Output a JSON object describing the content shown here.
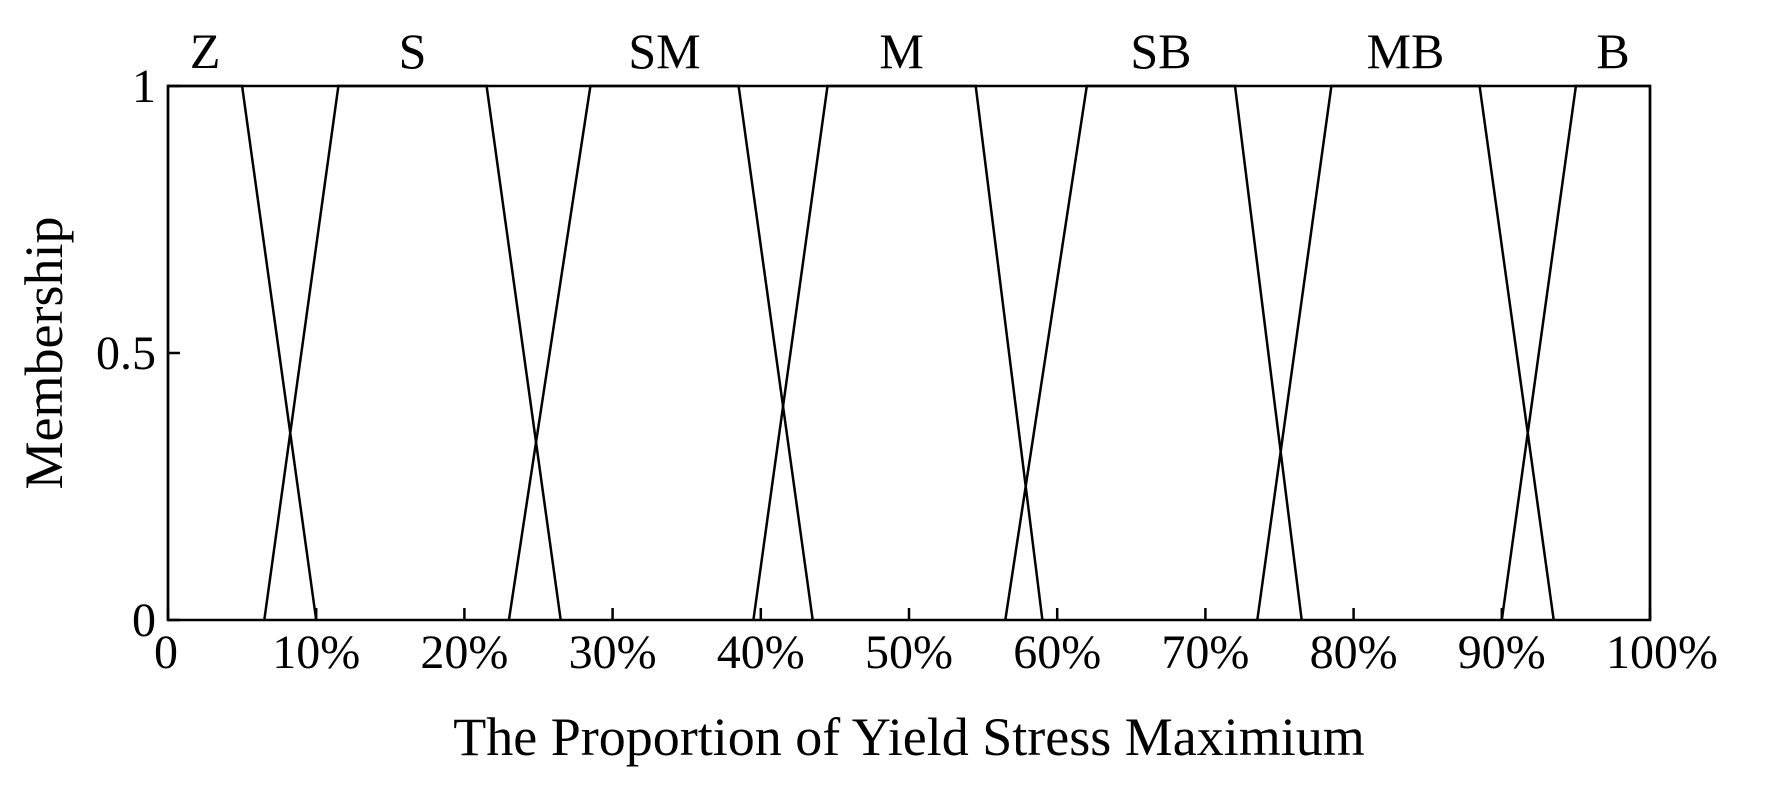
{
  "chart_data": {
    "type": "line",
    "xlabel": "The Proportion of Yield Stress Maximium",
    "ylabel": "Membership",
    "xlim": [
      0,
      100
    ],
    "ylim": [
      0,
      1
    ],
    "x_ticks": [
      {
        "value": 0,
        "label": "0"
      },
      {
        "value": 10,
        "label": "10%"
      },
      {
        "value": 20,
        "label": "20%"
      },
      {
        "value": 30,
        "label": "30%"
      },
      {
        "value": 40,
        "label": "40%"
      },
      {
        "value": 50,
        "label": "50%"
      },
      {
        "value": 60,
        "label": "60%"
      },
      {
        "value": 70,
        "label": "70%"
      },
      {
        "value": 80,
        "label": "80%"
      },
      {
        "value": 90,
        "label": "90%"
      },
      {
        "value": 100,
        "label": "100%"
      }
    ],
    "y_ticks": [
      {
        "value": 0,
        "label": "0"
      },
      {
        "value": 0.5,
        "label": "0.5"
      },
      {
        "value": 1,
        "label": "1"
      }
    ],
    "grid": false,
    "series": [
      {
        "name": "Z",
        "x": [
          0,
          0,
          5,
          10
        ],
        "y": [
          0,
          1,
          1,
          0
        ]
      },
      {
        "name": "S",
        "x": [
          6.5,
          11.5,
          21.5,
          26.5
        ],
        "y": [
          0,
          1,
          1,
          0
        ]
      },
      {
        "name": "SM",
        "x": [
          23,
          28.5,
          38.5,
          43.5
        ],
        "y": [
          0,
          1,
          1,
          0
        ]
      },
      {
        "name": "M",
        "x": [
          39.5,
          44.5,
          54.5,
          59
        ],
        "y": [
          0,
          1,
          1,
          0
        ]
      },
      {
        "name": "SB",
        "x": [
          56.5,
          62,
          72,
          76.5
        ],
        "y": [
          0,
          1,
          1,
          0
        ]
      },
      {
        "name": "MB",
        "x": [
          73.5,
          78.5,
          88.5,
          93.5
        ],
        "y": [
          0,
          1,
          1,
          0
        ]
      },
      {
        "name": "B",
        "x": [
          90,
          95,
          100,
          100
        ],
        "y": [
          0,
          1,
          1,
          0
        ]
      }
    ]
  }
}
